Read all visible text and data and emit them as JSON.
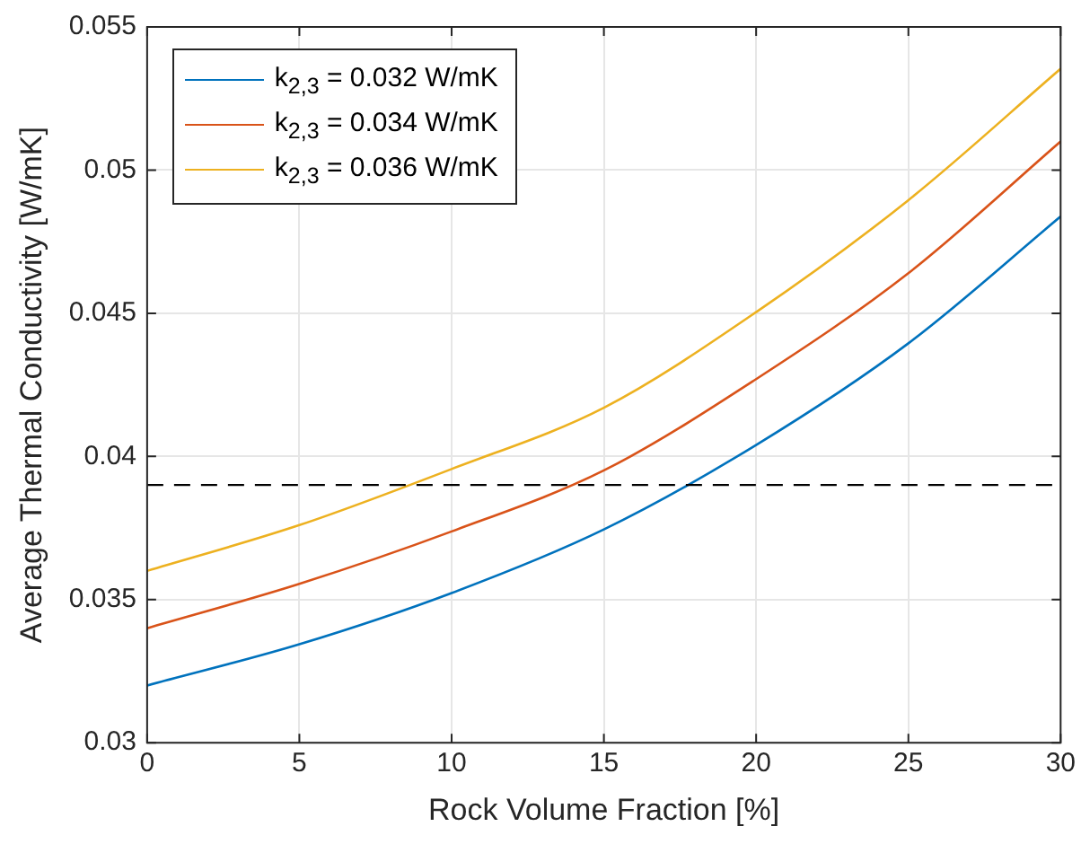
{
  "chart_data": {
    "type": "line",
    "xlabel": "Rock Volume Fraction [%]",
    "ylabel": "Average Thermal Conductivity [W/mK]",
    "x": [
      0,
      5,
      10,
      15,
      20,
      25,
      30
    ],
    "series": [
      {
        "name": "k$_{2,3}$ = 0.032 W/mK",
        "color": "#0072bd",
        "values": [
          0.032,
          0.03344,
          0.03523,
          0.03745,
          0.0404,
          0.04395,
          0.04838
        ]
      },
      {
        "name": "k$_{2,3}$ = 0.034 W/mK",
        "color": "#d95319",
        "values": [
          0.034,
          0.03555,
          0.03738,
          0.03951,
          0.0427,
          0.0464,
          0.051
        ]
      },
      {
        "name": "k$_{2,3}$ = 0.036 W/mK",
        "color": "#edb120",
        "values": [
          0.036,
          0.0376,
          0.03956,
          0.0417,
          0.04504,
          0.04895,
          0.05354
        ]
      }
    ],
    "xlim": [
      0,
      30
    ],
    "xticks": [
      0,
      5,
      10,
      15,
      20,
      25,
      30
    ],
    "ylim": [
      0.03,
      0.055
    ],
    "yticks": [
      0.03,
      0.035,
      0.04,
      0.045,
      0.05,
      0.055
    ],
    "ref_lines": [
      {
        "axis": "y",
        "value": 0.039,
        "color": "#000000",
        "line_style": "dashed"
      }
    ],
    "grid": true,
    "legend": "top left",
    "marker": "none",
    "line_style": "solid"
  }
}
